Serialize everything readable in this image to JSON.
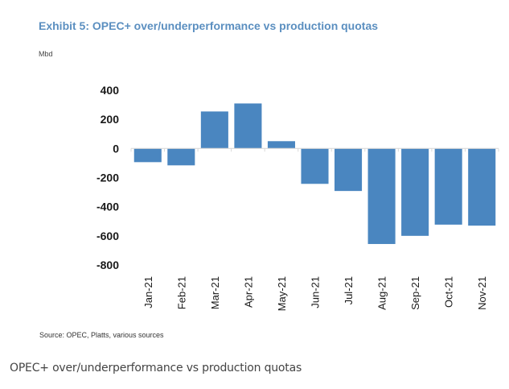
{
  "header": {
    "title": "Exhibit 5: OPEC+ over/underperformance vs production quotas",
    "unit": "Mbd"
  },
  "footer": {
    "source": "Source: OPEC, Platts, various sources",
    "caption": "OPEC+ over/underperformance vs production quotas"
  },
  "colors": {
    "bar": "#4a86c0",
    "title": "#5b8fc0",
    "axis": "#d9d9d9"
  },
  "chart_data": {
    "type": "bar",
    "title": "Exhibit 5: OPEC+ over/underperformance vs production quotas",
    "xlabel": "",
    "ylabel": "Mbd",
    "categories": [
      "Jan-21",
      "Feb-21",
      "Mar-21",
      "Apr-21",
      "May-21",
      "Jun-21",
      "Jul-21",
      "Aug-21",
      "Sep-21",
      "Oct-21",
      "Nov-21"
    ],
    "values": [
      -94,
      -116,
      254,
      309,
      50,
      -243,
      -292,
      -656,
      -600,
      -523,
      -530
    ],
    "ylim": [
      -800,
      400
    ],
    "yticks": [
      400,
      200,
      0,
      -200,
      -400,
      -600,
      -800
    ],
    "grid": false,
    "legend": "none"
  }
}
